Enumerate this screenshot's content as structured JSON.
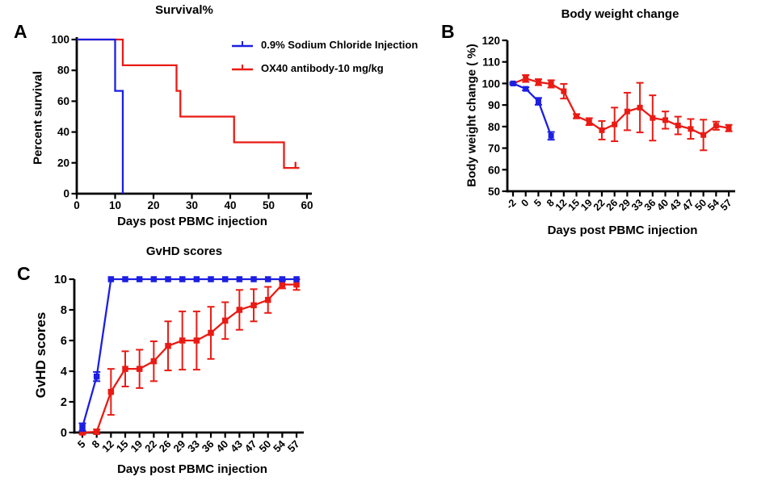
{
  "colors": {
    "blue": "#1c1fe2",
    "red": "#ea1b14",
    "axis": "#000000"
  },
  "panels": [
    {
      "id": "A",
      "label": "A",
      "title": "Survival%",
      "xlabel": "Days post PBMC injection",
      "ylabel": "Percent survival",
      "legend": [
        {
          "label": "0.9% Sodium Chloride Injection",
          "color": "#1c1fe2"
        },
        {
          "label": "OX40 antibody-10 mg/kg",
          "color": "#ea1b14"
        }
      ]
    },
    {
      "id": "B",
      "label": "B",
      "title": "Body weight change",
      "xlabel": "Days post PBMC injection",
      "ylabel": "Body weight change ( %)"
    },
    {
      "id": "C",
      "label": "C",
      "title": "GvHD scores",
      "xlabel": "Days post PBMC injection",
      "ylabel": "GvHD scores"
    }
  ],
  "chart_data": [
    {
      "type": "line",
      "subtype": "kaplan-meier-step",
      "panel": "A",
      "title": "Survival%",
      "xlabel": "Days post PBMC injection",
      "ylabel": "Percent survival",
      "xlim": [
        0,
        60
      ],
      "ylim": [
        0,
        100
      ],
      "xticks": [
        0,
        10,
        20,
        30,
        40,
        50,
        60
      ],
      "yticks": [
        0,
        20,
        40,
        60,
        80,
        100
      ],
      "legend_position": "upper right outside",
      "grid": false,
      "series": [
        {
          "name": "0.9% Sodium Chloride Injection",
          "color": "#1c1fe2",
          "steps": [
            [
              0,
              100
            ],
            [
              10,
              100
            ],
            [
              10,
              66.7
            ],
            [
              12,
              66.7
            ],
            [
              12,
              0
            ]
          ]
        },
        {
          "name": "OX40 antibody-10 mg/kg",
          "color": "#ea1b14",
          "steps": [
            [
              0,
              100
            ],
            [
              12,
              100
            ],
            [
              12,
              83.3
            ],
            [
              26,
              83.3
            ],
            [
              26,
              66.7
            ],
            [
              27,
              66.7
            ],
            [
              27,
              50
            ],
            [
              41,
              50
            ],
            [
              41,
              33.3
            ],
            [
              54,
              33.3
            ],
            [
              54,
              16.7
            ],
            [
              58,
              16.7
            ]
          ],
          "censor_ticks": [
            [
              57,
              16.7
            ]
          ]
        }
      ]
    },
    {
      "type": "line",
      "subtype": "mean-sd-errorbars",
      "panel": "B",
      "title": "Body weight change",
      "xlabel": "Days post PBMC injection",
      "ylabel": "Body weight change ( %)",
      "ylim": [
        50,
        120
      ],
      "yticks": [
        50,
        60,
        70,
        80,
        90,
        100,
        110,
        120
      ],
      "categories": [
        "-2",
        "0",
        "5",
        "8",
        "12",
        "15",
        "19",
        "22",
        "26",
        "29",
        "33",
        "36",
        "40",
        "43",
        "47",
        "50",
        "54",
        "57"
      ],
      "grid": false,
      "series": [
        {
          "name": "0.9% Sodium Chloride Injection",
          "color": "#1c1fe2",
          "values": [
            100,
            97.5,
            91.7,
            75.7
          ],
          "errors": [
            0.4,
            0.7,
            1.6,
            1.8
          ]
        },
        {
          "name": "OX40 antibody-10 mg/kg",
          "color": "#ea1b14",
          "values": [
            100,
            102.3,
            100.6,
            99.8,
            96.4,
            84.8,
            82.3,
            78.3,
            81.0,
            87.0,
            88.8,
            84.0,
            83.0,
            80.5,
            78.9,
            76.1,
            80.4,
            79.3
          ],
          "errors": [
            0,
            1.6,
            1.4,
            1.7,
            3.4,
            1.0,
            1.6,
            4.3,
            7.8,
            8.7,
            11.5,
            10.5,
            4.0,
            4.1,
            4.6,
            7.1,
            1.9,
            1.5
          ]
        }
      ]
    },
    {
      "type": "line",
      "subtype": "mean-sd-errorbars",
      "panel": "C",
      "title": "GvHD scores",
      "xlabel": "Days post PBMC injection",
      "ylabel": "GvHD scores",
      "ylim": [
        0,
        10
      ],
      "yticks": [
        0,
        2,
        4,
        6,
        8,
        10
      ],
      "categories": [
        "5",
        "8",
        "12",
        "15",
        "19",
        "22",
        "26",
        "29",
        "33",
        "36",
        "40",
        "43",
        "47",
        "50",
        "54",
        "57"
      ],
      "grid": false,
      "series": [
        {
          "name": "0.9% Sodium Chloride Injection",
          "color": "#1c1fe2",
          "values": [
            0.35,
            3.65,
            10,
            10,
            10,
            10,
            10,
            10,
            10,
            10,
            10,
            10,
            10,
            10,
            10,
            10
          ],
          "errors": [
            0.25,
            0.3,
            0,
            0,
            0,
            0,
            0,
            0,
            0,
            0,
            0,
            0,
            0,
            0,
            0,
            0
          ]
        },
        {
          "name": "OX40 antibody-10 mg/kg",
          "color": "#ea1b14",
          "values": [
            0,
            0.05,
            2.65,
            4.15,
            4.15,
            4.65,
            5.65,
            6.0,
            6.0,
            6.5,
            7.3,
            8.0,
            8.3,
            8.65,
            9.65,
            9.65
          ],
          "errors": [
            0.1,
            0.15,
            1.5,
            1.15,
            1.25,
            1.3,
            1.6,
            1.9,
            1.9,
            1.7,
            1.2,
            1.3,
            1.05,
            0.85,
            0.25,
            0.35
          ]
        }
      ]
    }
  ]
}
